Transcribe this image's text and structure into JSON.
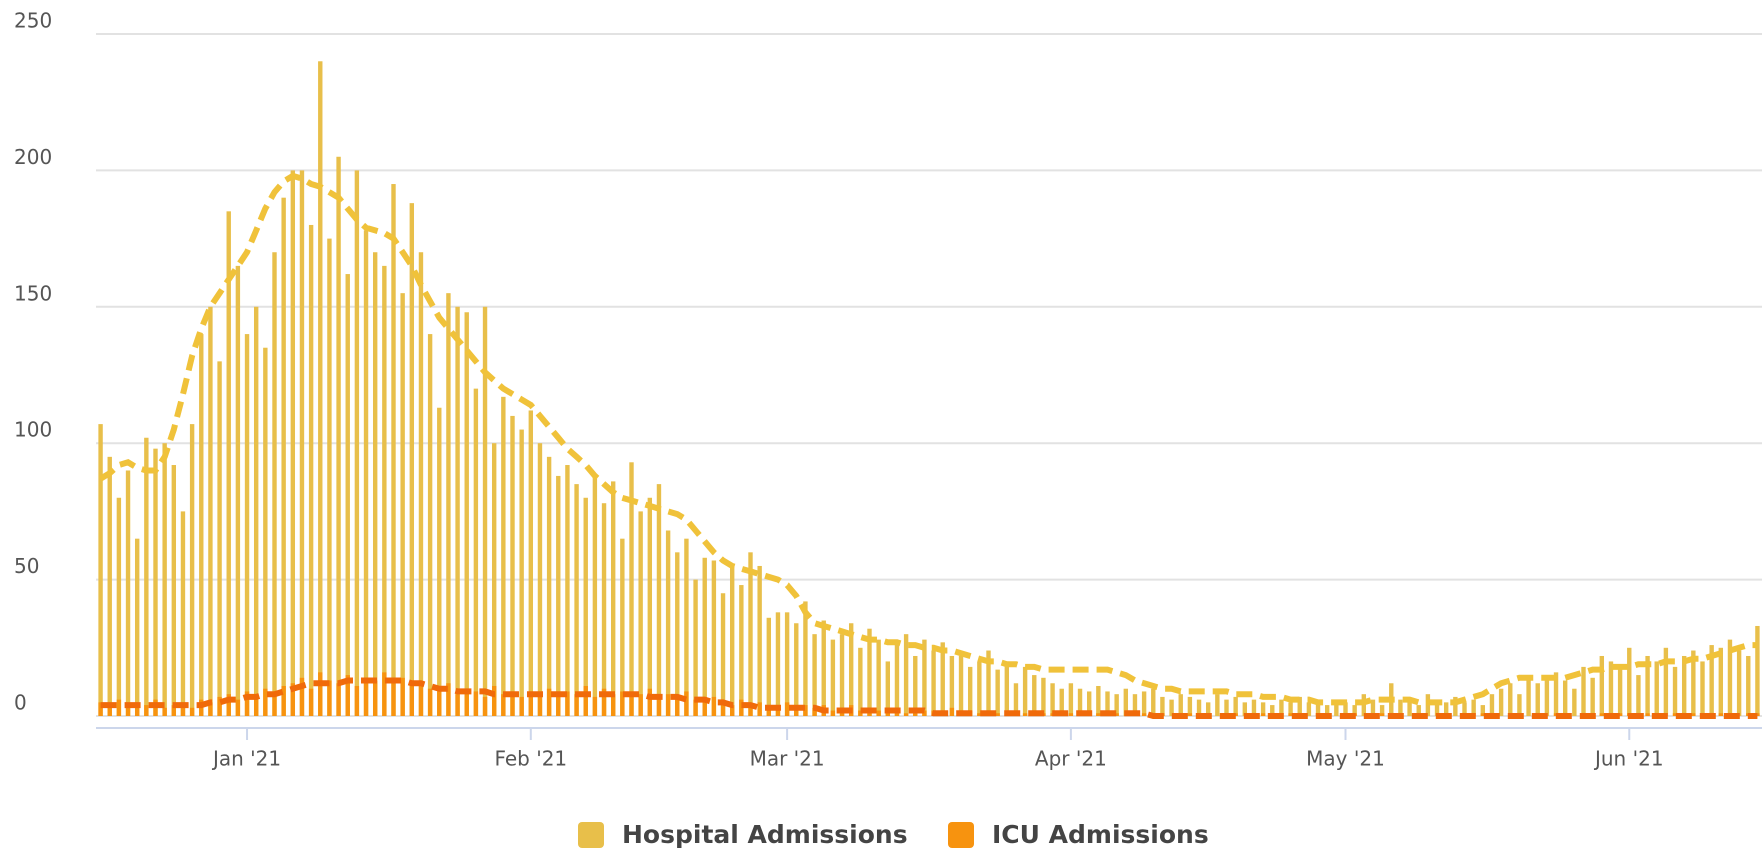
{
  "chart_data": {
    "type": "bar",
    "categories": [
      null,
      null,
      null,
      null,
      null,
      null,
      null,
      null,
      null,
      null,
      null,
      null,
      null,
      null,
      null,
      null,
      "Jan '21",
      null,
      null,
      null,
      null,
      null,
      null,
      null,
      null,
      null,
      null,
      null,
      null,
      null,
      null,
      null,
      null,
      null,
      null,
      null,
      null,
      null,
      null,
      null,
      null,
      null,
      null,
      null,
      null,
      null,
      null,
      "Feb '21",
      null,
      null,
      null,
      null,
      null,
      null,
      null,
      null,
      null,
      null,
      null,
      null,
      null,
      null,
      null,
      null,
      null,
      null,
      null,
      null,
      null,
      null,
      null,
      null,
      null,
      null,
      null,
      "Mar '21",
      null,
      null,
      null,
      null,
      null,
      null,
      null,
      null,
      null,
      null,
      null,
      null,
      null,
      null,
      null,
      null,
      null,
      null,
      null,
      null,
      null,
      null,
      null,
      null,
      null,
      null,
      null,
      null,
      null,
      null,
      "Apr '21",
      null,
      null,
      null,
      null,
      null,
      null,
      null,
      null,
      null,
      null,
      null,
      null,
      null,
      null,
      null,
      null,
      null,
      null,
      null,
      null,
      null,
      null,
      null,
      null,
      null,
      null,
      null,
      null,
      null,
      "May '21",
      null,
      null,
      null,
      null,
      null,
      null,
      null,
      null,
      null,
      null,
      null,
      null,
      null,
      null,
      null,
      null,
      null,
      null,
      null,
      null,
      null,
      null,
      null,
      null,
      null,
      null,
      null,
      null,
      null,
      null,
      "Jun '21",
      null,
      null,
      null,
      null,
      null,
      null,
      null,
      null,
      null,
      null,
      null,
      null,
      null,
      null
    ],
    "series": [
      {
        "name": "Hospital Admissions",
        "color": "#e8bf4a",
        "line_color": "#f0c23a",
        "values": [
          107,
          95,
          80,
          90,
          65,
          102,
          98,
          100,
          92,
          75,
          107,
          140,
          150,
          130,
          185,
          165,
          140,
          150,
          135,
          170,
          190,
          200,
          200,
          180,
          240,
          175,
          205,
          162,
          200,
          178,
          170,
          165,
          195,
          155,
          188,
          170,
          140,
          113,
          155,
          150,
          148,
          120,
          150,
          100,
          117,
          110,
          105,
          112,
          100,
          95,
          88,
          92,
          85,
          80,
          88,
          78,
          86,
          65,
          93,
          75,
          80,
          85,
          68,
          60,
          65,
          50,
          58,
          57,
          45,
          55,
          48,
          60,
          55,
          36,
          38,
          38,
          34,
          42,
          30,
          35,
          28,
          30,
          34,
          25,
          32,
          28,
          20,
          27,
          30,
          22,
          28,
          24,
          27,
          22,
          22,
          18,
          20,
          24,
          17,
          20,
          12,
          18,
          15,
          14,
          12,
          10,
          12,
          10,
          9,
          11,
          9,
          8,
          10,
          8,
          9,
          10,
          7,
          6,
          8,
          7,
          6,
          5,
          8,
          6,
          7,
          5,
          6,
          5,
          4,
          6,
          5,
          7,
          5,
          6,
          4,
          5,
          5,
          4,
          8,
          6,
          4,
          12,
          6,
          5,
          4,
          8,
          6,
          5,
          7,
          5,
          6,
          4,
          8,
          10,
          12,
          8,
          15,
          12,
          14,
          16,
          13,
          10,
          18,
          14,
          22,
          20,
          18,
          25,
          15,
          22,
          20,
          25,
          18,
          22,
          24,
          20,
          26,
          25,
          28,
          24,
          22,
          33
        ],
        "average": [
          87,
          89,
          92,
          93,
          91,
          90,
          90,
          95,
          105,
          118,
          132,
          142,
          150,
          155,
          160,
          165,
          170,
          178,
          186,
          192,
          196,
          198,
          197,
          195,
          194,
          192,
          190,
          186,
          182,
          179,
          178,
          177,
          175,
          170,
          165,
          158,
          152,
          146,
          142,
          138,
          134,
          130,
          126,
          123,
          120,
          118,
          116,
          114,
          110,
          106,
          102,
          98,
          95,
          92,
          88,
          85,
          82,
          80,
          79,
          78,
          77,
          76,
          75,
          74,
          72,
          68,
          64,
          60,
          57,
          55,
          54,
          53,
          52,
          51,
          50,
          48,
          44,
          38,
          34,
          33,
          32,
          31,
          30,
          29,
          28,
          28,
          27,
          27,
          26,
          26,
          25,
          25,
          24,
          24,
          23,
          22,
          21,
          20,
          20,
          19,
          19,
          18,
          18,
          17,
          17,
          17,
          17,
          17,
          17,
          17,
          17,
          16,
          15,
          13,
          12,
          11,
          10,
          10,
          9,
          9,
          9,
          9,
          9,
          9,
          8,
          8,
          8,
          7,
          7,
          7,
          6,
          6,
          6,
          5,
          5,
          5,
          5,
          5,
          5,
          6,
          6,
          6,
          6,
          6,
          5,
          5,
          5,
          5,
          5,
          6,
          7,
          8,
          10,
          12,
          13,
          14,
          14,
          14,
          14,
          14,
          14,
          15,
          16,
          17,
          17,
          18,
          18,
          18,
          19,
          19,
          19,
          20,
          20,
          20,
          21,
          21,
          22,
          23,
          24,
          25,
          26,
          26
        ]
      },
      {
        "name": "ICU Admissions",
        "color": "#f7930f",
        "line_color": "#f06a0a",
        "values": [
          5,
          4,
          6,
          3,
          5,
          4,
          6,
          3,
          4,
          5,
          3,
          6,
          5,
          7,
          8,
          6,
          9,
          7,
          10,
          8,
          11,
          12,
          14,
          10,
          16,
          13,
          12,
          15,
          11,
          14,
          13,
          16,
          12,
          14,
          13,
          11,
          10,
          9,
          12,
          8,
          10,
          9,
          7,
          11,
          8,
          9,
          7,
          9,
          8,
          10,
          7,
          9,
          8,
          11,
          7,
          10,
          8,
          9,
          7,
          8,
          10,
          6,
          8,
          7,
          9,
          6,
          5,
          7,
          5,
          4,
          6,
          3,
          5,
          4,
          3,
          5,
          3,
          4,
          3,
          4,
          2,
          3,
          4,
          2,
          3,
          2,
          3,
          2,
          1,
          3,
          2,
          2,
          1,
          3,
          2,
          2,
          1,
          2,
          1,
          1,
          2,
          1,
          0,
          1,
          1,
          2,
          1,
          0,
          1,
          1,
          0,
          1,
          0,
          1,
          1,
          0,
          1,
          0,
          0,
          1,
          0,
          1,
          0,
          0,
          1,
          0,
          0,
          1,
          0,
          0,
          1,
          0,
          0,
          1,
          0,
          0,
          0,
          1,
          0,
          0,
          1,
          0,
          0,
          0,
          1,
          0,
          0,
          1,
          0,
          0,
          0,
          1,
          0,
          0,
          1,
          0,
          0,
          1,
          0,
          1,
          0,
          0,
          1,
          0,
          1,
          0,
          1,
          1,
          0,
          1,
          1,
          0,
          1,
          0,
          1,
          1,
          0,
          1,
          1,
          0,
          1,
          1
        ],
        "average": [
          4,
          4,
          4,
          4,
          4,
          4,
          4,
          4,
          4,
          4,
          4,
          4,
          5,
          5,
          6,
          6,
          7,
          7,
          8,
          8,
          9,
          10,
          11,
          12,
          12,
          12,
          12,
          13,
          13,
          13,
          13,
          13,
          13,
          13,
          12,
          12,
          11,
          10,
          10,
          9,
          9,
          9,
          9,
          8,
          8,
          8,
          8,
          8,
          8,
          8,
          8,
          8,
          8,
          8,
          8,
          8,
          8,
          8,
          8,
          8,
          7,
          7,
          7,
          7,
          6,
          6,
          6,
          5,
          5,
          4,
          4,
          4,
          3,
          3,
          3,
          3,
          3,
          3,
          3,
          2,
          2,
          2,
          2,
          2,
          2,
          2,
          2,
          2,
          2,
          2,
          2,
          1,
          1,
          1,
          1,
          1,
          1,
          1,
          1,
          1,
          1,
          1,
          1,
          1,
          1,
          1,
          1,
          1,
          1,
          1,
          1,
          1,
          1,
          1,
          1,
          0,
          0,
          0,
          0,
          0,
          0,
          0,
          0,
          0,
          0,
          0,
          0,
          0,
          0,
          0,
          0,
          0,
          0,
          0,
          0,
          0,
          0,
          0,
          0,
          0,
          0,
          0,
          0,
          0,
          0,
          0,
          0,
          0,
          0,
          0,
          0,
          0,
          0,
          0,
          0,
          0,
          0,
          0,
          0,
          0,
          0,
          0,
          0,
          0,
          0,
          0,
          0,
          0,
          0,
          0,
          0,
          0,
          0,
          0,
          0,
          0,
          0,
          0,
          0,
          0,
          0,
          0
        ]
      }
    ],
    "ylim": [
      0,
      250
    ],
    "yticks": [
      0,
      50,
      100,
      150,
      200,
      250
    ],
    "grid": true
  }
}
